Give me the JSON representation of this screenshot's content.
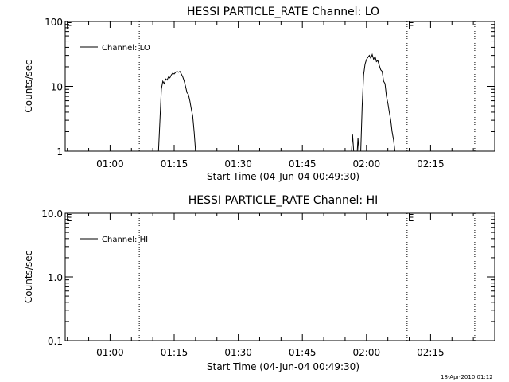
{
  "footer": {
    "timestamp": "18-Apr-2010 01:12"
  },
  "chart_data": [
    {
      "type": "line",
      "title": "HESSI PARTICLE_RATE Channel: LO",
      "xlabel": "Start Time (04-Jun-04 00:49:30)",
      "ylabel": "Counts/sec",
      "yscale": "log",
      "ylim": [
        1,
        100
      ],
      "y_ticks": [
        1,
        10,
        100
      ],
      "y_tick_labels": [
        "1",
        "10",
        "100"
      ],
      "xlim_minutes": [
        "00:49:30",
        "02:30:00"
      ],
      "x_ticks": [
        "01:00",
        "01:15",
        "01:30",
        "01:45",
        "02:00",
        "02:15"
      ],
      "grid": false,
      "legend": {
        "label": "Channel: LO",
        "position": "top-left"
      },
      "markers": [
        {
          "time": "01:06:50",
          "label": ""
        },
        {
          "time": "02:09:30",
          "label": "E"
        },
        {
          "time": "02:25:20",
          "label": ""
        }
      ],
      "corner_label": "E",
      "series": [
        {
          "name": "Channel: LO",
          "segments": [
            [
              [
                "01:11:20",
                1
              ],
              [
                "01:11:40",
                3
              ],
              [
                "01:12:00",
                9
              ],
              [
                "01:12:20",
                12
              ],
              [
                "01:12:40",
                11
              ],
              [
                "01:13:00",
                13
              ],
              [
                "01:13:20",
                12.5
              ],
              [
                "01:13:40",
                14
              ],
              [
                "01:14:00",
                13.5
              ],
              [
                "01:14:20",
                15
              ],
              [
                "01:14:40",
                16
              ],
              [
                "01:15:00",
                15.5
              ],
              [
                "01:15:20",
                16.5
              ],
              [
                "01:15:40",
                17
              ],
              [
                "01:16:00",
                16.5
              ],
              [
                "01:16:20",
                17
              ],
              [
                "01:16:40",
                15.5
              ],
              [
                "01:17:00",
                14
              ],
              [
                "01:17:20",
                12
              ],
              [
                "01:17:40",
                10
              ],
              [
                "01:18:00",
                8
              ],
              [
                "01:18:20",
                7.5
              ],
              [
                "01:18:40",
                6
              ],
              [
                "01:19:00",
                4.5
              ],
              [
                "01:19:20",
                3.5
              ],
              [
                "01:19:40",
                2
              ],
              [
                "01:20:00",
                1
              ]
            ],
            [
              [
                "01:56:30",
                1
              ],
              [
                "01:56:45",
                1.8
              ],
              [
                "01:57:00",
                1
              ]
            ],
            [
              [
                "01:57:50",
                1
              ],
              [
                "01:58:00",
                1.6
              ],
              [
                "01:58:15",
                1
              ]
            ],
            [
              [
                "01:58:40",
                1
              ],
              [
                "01:59:00",
                5
              ],
              [
                "01:59:20",
                15
              ],
              [
                "01:59:40",
                22
              ],
              [
                "02:00:00",
                26
              ],
              [
                "02:00:20",
                28
              ],
              [
                "02:00:40",
                30
              ],
              [
                "02:01:00",
                27
              ],
              [
                "02:01:20",
                31
              ],
              [
                "02:01:40",
                26
              ],
              [
                "02:02:00",
                29
              ],
              [
                "02:02:20",
                24
              ],
              [
                "02:02:40",
                25
              ],
              [
                "02:03:00",
                21
              ],
              [
                "02:03:20",
                18
              ],
              [
                "02:03:40",
                17
              ],
              [
                "02:04:00",
                12
              ],
              [
                "02:04:20",
                11
              ],
              [
                "02:04:40",
                7
              ],
              [
                "02:05:00",
                5.5
              ],
              [
                "02:05:20",
                4
              ],
              [
                "02:05:40",
                3
              ],
              [
                "02:06:00",
                2
              ],
              [
                "02:06:20",
                1.5
              ],
              [
                "02:06:40",
                1
              ]
            ]
          ]
        }
      ]
    },
    {
      "type": "line",
      "title": "HESSI PARTICLE_RATE Channel: HI",
      "xlabel": "Start Time (04-Jun-04 00:49:30)",
      "ylabel": "Counts/sec",
      "yscale": "log",
      "ylim": [
        0.1,
        10
      ],
      "y_ticks": [
        0.1,
        1,
        10
      ],
      "y_tick_labels": [
        "0.1",
        "1.0",
        "10.0"
      ],
      "xlim_minutes": [
        "00:49:30",
        "02:30:00"
      ],
      "x_ticks": [
        "01:00",
        "01:15",
        "01:30",
        "01:45",
        "02:00",
        "02:15"
      ],
      "grid": false,
      "legend": {
        "label": "Channel: HI",
        "position": "top-left"
      },
      "markers": [
        {
          "time": "01:06:50",
          "label": ""
        },
        {
          "time": "02:09:30",
          "label": "E"
        },
        {
          "time": "02:25:20",
          "label": ""
        }
      ],
      "corner_label": "E",
      "series": [
        {
          "name": "Channel: HI",
          "segments": []
        }
      ]
    }
  ]
}
